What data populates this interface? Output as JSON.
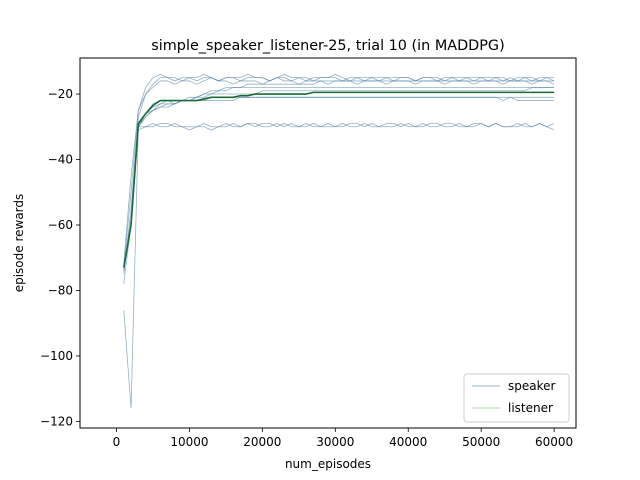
{
  "chart_data": {
    "type": "line",
    "title": "simple_speaker_listener-25, trial 10 (in MADDPG)",
    "xlabel": "num_episodes",
    "ylabel": "episode rewards",
    "xlim": [
      -5000,
      63000
    ],
    "ylim": [
      -122,
      -9
    ],
    "xticks": [
      0,
      10000,
      20000,
      30000,
      40000,
      50000,
      60000
    ],
    "xtick_labels": [
      "0",
      "10000",
      "20000",
      "30000",
      "40000",
      "50000",
      "60000"
    ],
    "yticks": [
      -120,
      -100,
      -80,
      -60,
      -40,
      -20
    ],
    "ytick_labels": [
      "−120",
      "−100",
      "−80",
      "−60",
      "−40",
      "−20"
    ],
    "x": [
      1000,
      2000,
      3000,
      4000,
      5000,
      6000,
      7000,
      8000,
      9000,
      10000,
      11000,
      12000,
      13000,
      14000,
      15000,
      16000,
      17000,
      18000,
      19000,
      20000,
      21000,
      22000,
      23000,
      24000,
      25000,
      26000,
      27000,
      28000,
      29000,
      30000,
      31000,
      32000,
      33000,
      34000,
      35000,
      36000,
      37000,
      38000,
      39000,
      40000,
      41000,
      42000,
      43000,
      44000,
      45000,
      46000,
      47000,
      48000,
      49000,
      50000,
      51000,
      52000,
      53000,
      54000,
      55000,
      56000,
      57000,
      58000,
      59000,
      60000
    ],
    "legend": {
      "position": "lower right",
      "entries": [
        {
          "label": "speaker",
          "color": "#7a9fc0"
        },
        {
          "label": "listener",
          "color": "#8fd08f"
        }
      ]
    },
    "speaker_color": "#5b86ad",
    "mean_color": "#1a6b35",
    "speaker_runs": [
      [
        -86,
        -116,
        -30,
        -30,
        -30,
        -29,
        -29,
        -30,
        -30,
        -31,
        -30,
        -30,
        -31,
        -30,
        -30,
        -29,
        -30,
        -29,
        -30,
        -29,
        -29,
        -30,
        -29,
        -30,
        -30,
        -30,
        -29,
        -30,
        -30,
        -30,
        -29,
        -30,
        -30,
        -29,
        -30,
        -30,
        -29,
        -29,
        -30,
        -29,
        -30,
        -30,
        -29,
        -29,
        -30,
        -30,
        -29,
        -30,
        -29,
        -29,
        -30,
        -29,
        -30,
        -30,
        -30,
        -29,
        -30,
        -29,
        -30,
        -29
      ],
      [
        -78,
        -60,
        -31,
        -30,
        -29,
        -30,
        -30,
        -29,
        -30,
        -30,
        -30,
        -29,
        -30,
        -30,
        -29,
        -30,
        -30,
        -29,
        -29,
        -30,
        -30,
        -29,
        -30,
        -29,
        -30,
        -29,
        -30,
        -30,
        -29,
        -30,
        -30,
        -29,
        -29,
        -30,
        -29,
        -30,
        -30,
        -30,
        -29,
        -30,
        -30,
        -29,
        -30,
        -30,
        -29,
        -29,
        -30,
        -30,
        -30,
        -29,
        -30,
        -29,
        -30,
        -30,
        -29,
        -30,
        -30,
        -29,
        -30,
        -31
      ],
      [
        -75,
        -55,
        -27,
        -20,
        -17,
        -15,
        -15,
        -16,
        -15,
        -15,
        -16,
        -15,
        -15,
        -16,
        -15,
        -15,
        -16,
        -15,
        -15,
        -15,
        -16,
        -15,
        -15,
        -16,
        -15,
        -15,
        -16,
        -15,
        -15,
        -15,
        -16,
        -15,
        -15,
        -16,
        -15,
        -15,
        -15,
        -16,
        -15,
        -15,
        -16,
        -15,
        -15,
        -16,
        -15,
        -15,
        -16,
        -15,
        -15,
        -15,
        -16,
        -15,
        -15,
        -16,
        -15,
        -15,
        -16,
        -15,
        -15,
        -16
      ],
      [
        -73,
        -50,
        -25,
        -18,
        -15,
        -14,
        -15,
        -15,
        -16,
        -15,
        -15,
        -14,
        -15,
        -16,
        -15,
        -15,
        -15,
        -14,
        -15,
        -15,
        -16,
        -15,
        -14,
        -15,
        -15,
        -16,
        -15,
        -15,
        -15,
        -14,
        -15,
        -16,
        -15,
        -15,
        -15,
        -16,
        -15,
        -15,
        -15,
        -15,
        -16,
        -15,
        -15,
        -15,
        -16,
        -15,
        -15,
        -15,
        -16,
        -15,
        -15,
        -15,
        -16,
        -15,
        -16,
        -15,
        -15,
        -16,
        -15,
        -15
      ],
      [
        -72,
        -45,
        -25,
        -20,
        -18,
        -16,
        -16,
        -17,
        -16,
        -16,
        -17,
        -16,
        -15,
        -16,
        -16,
        -17,
        -16,
        -16,
        -16,
        -17,
        -16,
        -15,
        -16,
        -16,
        -17,
        -16,
        -16,
        -16,
        -17,
        -16,
        -16,
        -16,
        -17,
        -16,
        -16,
        -16,
        -17,
        -16,
        -16,
        -16,
        -17,
        -16,
        -16,
        -16,
        -17,
        -16,
        -16,
        -16,
        -17,
        -16,
        -16,
        -16,
        -17,
        -16,
        -16,
        -16,
        -17,
        -16,
        -16,
        -17
      ],
      [
        -74,
        -58,
        -29,
        -26,
        -23,
        -22,
        -22,
        -23,
        -22,
        -22,
        -21,
        -20,
        -19,
        -19,
        -18,
        -18,
        -18,
        -17,
        -17,
        -17,
        -17,
        -17,
        -17,
        -17,
        -17,
        -17,
        -17,
        -16,
        -16,
        -16,
        -16,
        -16,
        -16,
        -16,
        -16,
        -16,
        -16,
        -16,
        -16,
        -16,
        -16,
        -16,
        -16,
        -16,
        -16,
        -16,
        -16,
        -16,
        -16,
        -16,
        -16,
        -16,
        -16,
        -16,
        -16,
        -16,
        -16,
        -16,
        -16,
        -16
      ],
      [
        -74,
        -60,
        -30,
        -26,
        -25,
        -24,
        -23,
        -23,
        -22,
        -22,
        -21,
        -21,
        -20,
        -20,
        -20,
        -20,
        -20,
        -20,
        -20,
        -19,
        -19,
        -19,
        -19,
        -19,
        -19,
        -19,
        -19,
        -19,
        -19,
        -19,
        -19,
        -19,
        -19,
        -19,
        -19,
        -19,
        -19,
        -19,
        -19,
        -19,
        -19,
        -19,
        -19,
        -19,
        -19,
        -19,
        -19,
        -19,
        -19,
        -19,
        -19,
        -19,
        -19,
        -19,
        -19,
        -19,
        -18,
        -18,
        -18,
        -18
      ],
      [
        -73,
        -60,
        -30,
        -27,
        -25,
        -23,
        -22,
        -22,
        -22,
        -22,
        -22,
        -22,
        -22,
        -22,
        -22,
        -22,
        -21,
        -21,
        -21,
        -21,
        -21,
        -21,
        -21,
        -21,
        -21,
        -21,
        -21,
        -21,
        -21,
        -21,
        -21,
        -21,
        -21,
        -21,
        -21,
        -21,
        -21,
        -21,
        -21,
        -21,
        -21,
        -21,
        -21,
        -21,
        -21,
        -21,
        -21,
        -21,
        -21,
        -21,
        -21,
        -21,
        -21,
        -21,
        -21,
        -21,
        -21,
        -21,
        -21,
        -21
      ],
      [
        -73,
        -60,
        -30,
        -27,
        -25,
        -24,
        -24,
        -23,
        -22,
        -21,
        -21,
        -20,
        -20,
        -19,
        -19,
        -18,
        -18,
        -18,
        -18,
        -18,
        -18,
        -18,
        -18,
        -18,
        -18,
        -18,
        -18,
        -18,
        -18,
        -18,
        -18,
        -18,
        -18,
        -18,
        -18,
        -18,
        -18,
        -18,
        -18,
        -18,
        -18,
        -18,
        -18,
        -18,
        -18,
        -18,
        -18,
        -18,
        -18,
        -18,
        -18,
        -18,
        -18,
        -18,
        -18,
        -18,
        -18,
        -18,
        -18,
        -18
      ],
      [
        -74,
        -60,
        -30,
        -26,
        -24,
        -23,
        -23,
        -23,
        -22,
        -22,
        -22,
        -22,
        -21,
        -21,
        -21,
        -21,
        -21,
        -21,
        -21,
        -21,
        -21,
        -21,
        -21,
        -21,
        -21,
        -21,
        -21,
        -21,
        -21,
        -21,
        -21,
        -21,
        -21,
        -21,
        -21,
        -21,
        -21,
        -21,
        -21,
        -21,
        -21,
        -21,
        -21,
        -21,
        -21,
        -21,
        -21,
        -21,
        -21,
        -21,
        -21,
        -21,
        -22,
        -21,
        -22,
        -22,
        -22,
        -22,
        -22,
        -22
      ]
    ],
    "mean_values": [
      -73,
      -60,
      -29,
      -26,
      -23.5,
      -22,
      -22,
      -22,
      -22,
      -22,
      -22,
      -21.5,
      -21,
      -21,
      -21,
      -21,
      -20.5,
      -20.5,
      -20,
      -20,
      -20,
      -20,
      -20,
      -20,
      -20,
      -20,
      -19.5,
      -19.5,
      -19.5,
      -19.5,
      -19.5,
      -19.5,
      -19.5,
      -19.5,
      -19.5,
      -19.5,
      -19.5,
      -19.5,
      -19.5,
      -19.5,
      -19.5,
      -19.5,
      -19.5,
      -19.5,
      -19.5,
      -19.5,
      -19.5,
      -19.5,
      -19.5,
      -19.5,
      -19.5,
      -19.5,
      -19.5,
      -19.5,
      -19.5,
      -19.5,
      -19.5,
      -19.5,
      -19.5,
      -19.5
    ]
  }
}
